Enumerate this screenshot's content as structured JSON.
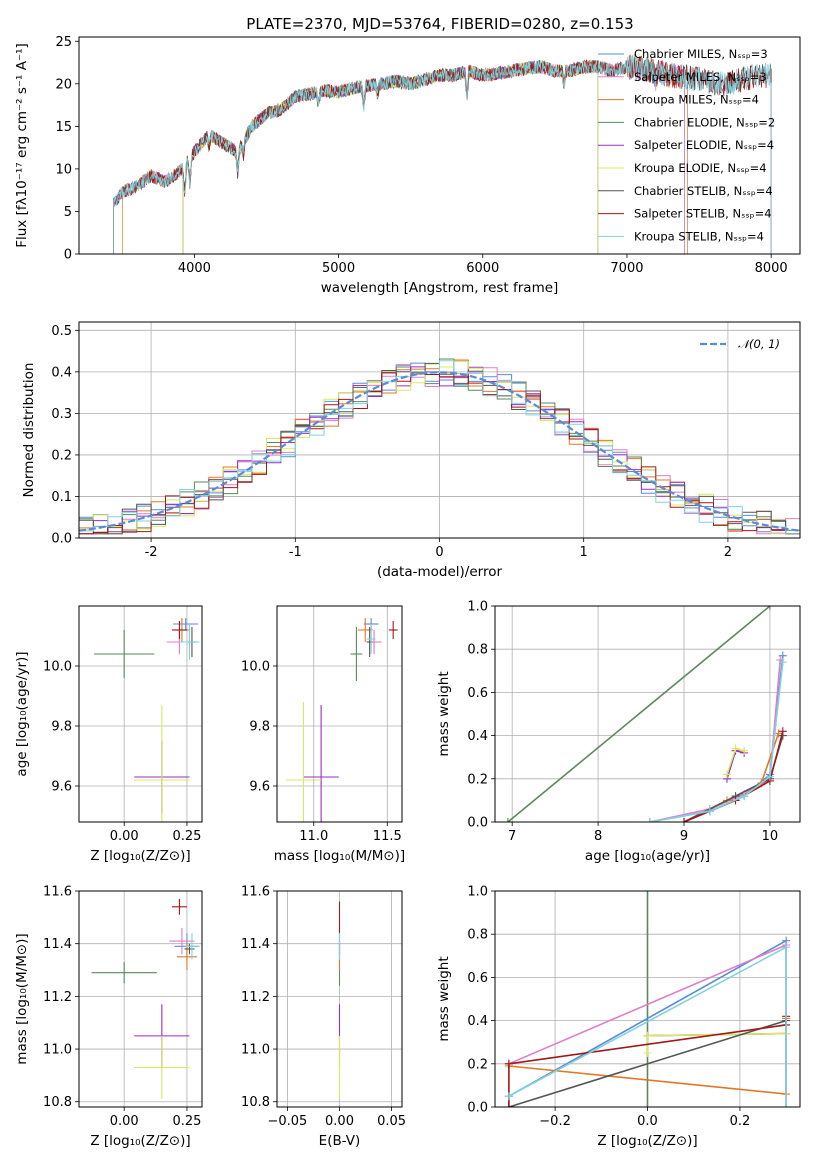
{
  "colors": {
    "chabrier_miles": "#5b8bd6",
    "salpeter_miles": "#e07ec8",
    "kroupa_miles": "#e0782a",
    "chabrier_elodie": "#5a8a5a",
    "salpeter_elodie": "#9a2fc0",
    "kroupa_elodie": "#d8e860",
    "chabrier_stelib": "#555555",
    "salpeter_stelib": "#a01818",
    "kroupa_stelib": "#7fd2de",
    "gaussian": "#5b8bd6"
  },
  "figure_title": "PLATE=2370, MJD=53764, FIBERID=0280, z=0.153",
  "chart_data": [
    {
      "id": "spectrum",
      "type": "line",
      "xlabel": "wavelength [Angstrom, rest frame]",
      "ylabel": "Flux [fλ10⁻¹⁷ erg cm⁻² s⁻¹ A⁻¹]",
      "xlim": [
        3200,
        8200
      ],
      "ylim": [
        0,
        25.5
      ],
      "xticks": [
        4000,
        5000,
        6000,
        7000,
        8000
      ],
      "yticks": [
        0,
        5,
        10,
        15,
        20,
        25
      ],
      "grid": false,
      "legend_location": "upper right",
      "spectrum_x": [
        3440,
        3500,
        3600,
        3700,
        3800,
        3900,
        4000,
        4100,
        4200,
        4300,
        4400,
        4500,
        4600,
        4700,
        4800,
        4900,
        5000,
        5100,
        5200,
        5300,
        5400,
        5500,
        5600,
        5700,
        5800,
        5900,
        6000,
        6100,
        6200,
        6300,
        6400,
        6500,
        6600,
        6700,
        6800,
        6900,
        7000,
        7100,
        7200,
        7300,
        7400,
        7500,
        7600,
        7700,
        7800,
        7900,
        8000
      ],
      "spectrum_y": [
        6.0,
        7.2,
        8.0,
        9.2,
        8.5,
        9.8,
        12.0,
        14.0,
        13.0,
        12.0,
        15.0,
        16.5,
        17.0,
        18.5,
        18.8,
        19.2,
        19.0,
        19.5,
        19.8,
        20.0,
        20.3,
        20.0,
        20.5,
        21.0,
        21.0,
        21.5,
        21.0,
        21.2,
        21.5,
        21.8,
        22.0,
        21.5,
        21.5,
        22.0,
        22.0,
        21.5,
        22.0,
        21.8,
        21.5,
        21.0,
        20.8,
        20.5,
        20.0,
        20.0,
        20.5,
        21.0,
        21.0
      ],
      "series": [
        {
          "name": "Chabrier MILES, Nₛₛₚ=3",
          "color_key": "chabrier_miles",
          "x_range": [
            3440,
            7400
          ]
        },
        {
          "name": "Salpeter MILES, Nₛₛₚ=3",
          "color_key": "salpeter_miles",
          "x_range": [
            3440,
            7400
          ]
        },
        {
          "name": "Kroupa MILES, Nₛₛₚ=4",
          "color_key": "kroupa_miles",
          "x_range": [
            3500,
            7420
          ]
        },
        {
          "name": "Chabrier ELODIE, Nₛₛₚ=2",
          "color_key": "chabrier_elodie",
          "x_range": [
            3920,
            6800
          ]
        },
        {
          "name": "Salpeter ELODIE, Nₛₛₚ=4",
          "color_key": "salpeter_elodie",
          "x_range": [
            3920,
            6800
          ]
        },
        {
          "name": "Kroupa ELODIE, Nₛₛₚ=4",
          "color_key": "kroupa_elodie",
          "x_range": [
            3920,
            6800
          ]
        },
        {
          "name": "Chabrier STELIB, Nₛₛₚ=4",
          "color_key": "chabrier_stelib",
          "x_range": [
            3440,
            8000
          ]
        },
        {
          "name": "Salpeter STELIB, Nₛₛₚ=4",
          "color_key": "salpeter_stelib",
          "x_range": [
            3440,
            8000
          ]
        },
        {
          "name": "Kroupa STELIB, Nₛₛₚ=4",
          "color_key": "kroupa_stelib",
          "x_range": [
            3440,
            8000
          ]
        }
      ]
    },
    {
      "id": "residuals",
      "type": "line",
      "xlabel": "(data-model)/error",
      "ylabel": "Normed distribution",
      "xlim": [
        -2.5,
        2.5
      ],
      "ylim": [
        0,
        0.52
      ],
      "xticks": [
        -2,
        -1,
        0,
        1,
        2
      ],
      "yticks": [
        0.0,
        0.1,
        0.2,
        0.3,
        0.4,
        0.5
      ],
      "ytick_labels": [
        "0.0",
        "0.1",
        "0.2",
        "0.3",
        "0.4",
        "0.5"
      ],
      "grid": true,
      "legend_location": "upper right",
      "gaussian_label": "𝒩(0, 1)"
    },
    {
      "id": "age_vs_Z",
      "type": "scatter",
      "xlabel": "Z [log₁₀(Z/Z⊙)]",
      "ylabel": "age  [log₁₀(age/yr)]",
      "xlim": [
        -0.18,
        0.31
      ],
      "ylim": [
        9.48,
        10.2
      ],
      "xticks": [
        0.0,
        0.25
      ],
      "xtick_labels": [
        "0.00",
        "0.25"
      ],
      "yticks": [
        9.6,
        9.8,
        10.0
      ],
      "ytick_labels": [
        "9.6",
        "9.8",
        "10.0"
      ],
      "grid": true,
      "points": [
        {
          "color_key": "chabrier_elodie",
          "x": 0.0,
          "y": 10.04,
          "xerr": 0.12,
          "yerr": 0.08
        },
        {
          "color_key": "salpeter_elodie",
          "x": 0.15,
          "y": 9.63,
          "xerr": 0.11,
          "yerr": 0.12
        },
        {
          "color_key": "kroupa_elodie",
          "x": 0.15,
          "y": 9.62,
          "xerr": 0.11,
          "yerr": 0.25
        },
        {
          "color_key": "chabrier_miles",
          "x": 0.245,
          "y": 10.14,
          "xerr": 0.05,
          "yerr": 0.02
        },
        {
          "color_key": "salpeter_miles",
          "x": 0.22,
          "y": 10.08,
          "xerr": 0.05,
          "yerr": 0.04
        },
        {
          "color_key": "kroupa_miles",
          "x": 0.23,
          "y": 10.12,
          "xerr": 0.03,
          "yerr": 0.04
        },
        {
          "color_key": "chabrier_stelib",
          "x": 0.27,
          "y": 10.08,
          "xerr": 0.02,
          "yerr": 0.05
        },
        {
          "color_key": "salpeter_stelib",
          "x": 0.22,
          "y": 10.12,
          "xerr": 0.03,
          "yerr": 0.03
        },
        {
          "color_key": "kroupa_stelib",
          "x": 0.26,
          "y": 10.08,
          "xerr": 0.04,
          "yerr": 0.06
        }
      ]
    },
    {
      "id": "age_vs_mass",
      "type": "scatter",
      "xlabel": "mass [log₁₀(M/M⊙)]",
      "ylabel": "",
      "xlim": [
        10.75,
        11.6
      ],
      "ylim": [
        9.48,
        10.2
      ],
      "xticks": [
        11.0,
        11.5
      ],
      "xtick_labels": [
        "11.0",
        "11.5"
      ],
      "yticks": [
        9.6,
        9.8,
        10.0
      ],
      "ytick_labels": [
        "9.6",
        "9.8",
        "10.0"
      ],
      "grid": true,
      "points": [
        {
          "color_key": "chabrier_elodie",
          "x": 11.29,
          "y": 10.04,
          "xerr": 0.04,
          "yerr": 0.09
        },
        {
          "color_key": "salpeter_elodie",
          "x": 11.05,
          "y": 9.63,
          "xerr": 0.12,
          "yerr": 0.24
        },
        {
          "color_key": "kroupa_elodie",
          "x": 10.93,
          "y": 9.62,
          "xerr": 0.12,
          "yerr": 0.26
        },
        {
          "color_key": "chabrier_miles",
          "x": 11.39,
          "y": 10.14,
          "xerr": 0.05,
          "yerr": 0.02
        },
        {
          "color_key": "salpeter_miles",
          "x": 11.41,
          "y": 10.08,
          "xerr": 0.05,
          "yerr": 0.04
        },
        {
          "color_key": "kroupa_miles",
          "x": 11.35,
          "y": 10.12,
          "xerr": 0.05,
          "yerr": 0.04
        },
        {
          "color_key": "chabrier_stelib",
          "x": 11.38,
          "y": 10.08,
          "xerr": 0.02,
          "yerr": 0.05
        },
        {
          "color_key": "salpeter_stelib",
          "x": 11.54,
          "y": 10.12,
          "xerr": 0.03,
          "yerr": 0.03
        },
        {
          "color_key": "kroupa_stelib",
          "x": 11.39,
          "y": 10.09,
          "xerr": 0.03,
          "yerr": 0.05
        }
      ]
    },
    {
      "id": "cumulative_mass_weight_vs_age",
      "type": "line",
      "xlabel": "age  [log₁₀(age/yr)]",
      "ylabel": "mass weight",
      "xlim": [
        6.8,
        10.35
      ],
      "ylim": [
        0,
        1
      ],
      "xticks": [
        7,
        8,
        9,
        10
      ],
      "yticks": [
        0.0,
        0.2,
        0.4,
        0.6,
        0.8,
        1.0
      ],
      "ytick_labels": [
        "0.0",
        "0.2",
        "0.4",
        "0.6",
        "0.8",
        "1.0"
      ],
      "grid": true,
      "series": [
        {
          "color_key": "chabrier_elodie",
          "x": [
            6.95,
            10.0
          ],
          "y": [
            0.0,
            1.0
          ]
        },
        {
          "color_key": "chabrier_miles",
          "x": [
            8.6,
            9.3,
            9.7,
            10.0,
            10.15
          ],
          "y": [
            0.0,
            0.05,
            0.12,
            0.22,
            0.77
          ]
        },
        {
          "color_key": "salpeter_miles",
          "x": [
            8.6,
            9.3,
            9.7,
            10.0,
            10.12
          ],
          "y": [
            0.0,
            0.06,
            0.13,
            0.2,
            0.75
          ]
        },
        {
          "color_key": "kroupa_miles",
          "x": [
            9.0,
            9.5,
            9.9,
            10.1
          ],
          "y": [
            0.0,
            0.1,
            0.18,
            0.41
          ]
        },
        {
          "color_key": "salpeter_elodie",
          "x": [
            9.5,
            9.6,
            9.7
          ],
          "y": [
            0.2,
            0.33,
            0.32
          ]
        },
        {
          "color_key": "kroupa_elodie",
          "x": [
            9.5,
            9.6,
            9.7
          ],
          "y": [
            0.22,
            0.34,
            0.33
          ]
        },
        {
          "color_key": "chabrier_stelib",
          "x": [
            9.0,
            9.6,
            10.0,
            10.15
          ],
          "y": [
            0.0,
            0.12,
            0.2,
            0.4
          ]
        },
        {
          "color_key": "salpeter_stelib",
          "x": [
            9.0,
            9.6,
            10.0,
            10.15
          ],
          "y": [
            0.0,
            0.1,
            0.19,
            0.42
          ]
        },
        {
          "color_key": "kroupa_stelib",
          "x": [
            8.6,
            9.3,
            9.7,
            10.0,
            10.15
          ],
          "y": [
            0.0,
            0.05,
            0.12,
            0.21,
            0.74
          ]
        }
      ]
    },
    {
      "id": "mass_vs_Z",
      "type": "scatter",
      "xlabel": "Z [log₁₀(Z/Z⊙)]",
      "ylabel": "mass [log₁₀(M/M⊙)]",
      "xlim": [
        -0.18,
        0.31
      ],
      "ylim": [
        10.78,
        11.6
      ],
      "xticks": [
        0.0,
        0.25
      ],
      "xtick_labels": [
        "0.00",
        "0.25"
      ],
      "yticks": [
        10.8,
        11.0,
        11.2,
        11.4,
        11.6
      ],
      "ytick_labels": [
        "10.8",
        "11.0",
        "11.2",
        "11.4",
        "11.6"
      ],
      "grid": true,
      "points": [
        {
          "color_key": "chabrier_elodie",
          "x": 0.0,
          "y": 11.29,
          "xerr": 0.13,
          "yerr": 0.04
        },
        {
          "color_key": "salpeter_elodie",
          "x": 0.15,
          "y": 11.05,
          "xerr": 0.11,
          "yerr": 0.12
        },
        {
          "color_key": "kroupa_elodie",
          "x": 0.15,
          "y": 10.93,
          "xerr": 0.11,
          "yerr": 0.12
        },
        {
          "color_key": "chabrier_miles",
          "x": 0.25,
          "y": 11.39,
          "xerr": 0.05,
          "yerr": 0.05
        },
        {
          "color_key": "salpeter_miles",
          "x": 0.23,
          "y": 11.41,
          "xerr": 0.05,
          "yerr": 0.05
        },
        {
          "color_key": "kroupa_miles",
          "x": 0.25,
          "y": 11.35,
          "xerr": 0.04,
          "yerr": 0.05
        },
        {
          "color_key": "chabrier_stelib",
          "x": 0.26,
          "y": 11.38,
          "xerr": 0.02,
          "yerr": 0.02
        },
        {
          "color_key": "salpeter_stelib",
          "x": 0.22,
          "y": 11.54,
          "xerr": 0.03,
          "yerr": 0.03
        },
        {
          "color_key": "kroupa_stelib",
          "x": 0.27,
          "y": 11.39,
          "xerr": 0.03,
          "yerr": 0.05
        }
      ]
    },
    {
      "id": "mass_vs_ebv",
      "type": "scatter",
      "xlabel": "E(B-V)",
      "ylabel": "",
      "xlim": [
        -0.06,
        0.06
      ],
      "ylim": [
        10.78,
        11.6
      ],
      "xticks": [
        -0.05,
        0.0,
        0.05
      ],
      "xtick_labels": [
        "−0.05",
        "0.00",
        "0.05"
      ],
      "yticks": [
        10.8,
        11.0,
        11.2,
        11.4,
        11.6
      ],
      "ytick_labels": [
        "10.8",
        "11.0",
        "11.2",
        "11.4",
        "11.6"
      ],
      "grid": true,
      "points": [
        {
          "color_key": "chabrier_elodie",
          "x": 0.0,
          "y": 11.29,
          "xerr": 0.0,
          "yerr": 0.05
        },
        {
          "color_key": "salpeter_elodie",
          "x": 0.0,
          "y": 11.05,
          "xerr": 0.0,
          "yerr": 0.12
        },
        {
          "color_key": "kroupa_elodie",
          "x": 0.0,
          "y": 10.93,
          "xerr": 0.0,
          "yerr": 0.12
        },
        {
          "color_key": "chabrier_miles",
          "x": 0.0,
          "y": 11.39,
          "xerr": 0.0,
          "yerr": 0.05
        },
        {
          "color_key": "salpeter_miles",
          "x": 0.0,
          "y": 11.41,
          "xerr": 0.0,
          "yerr": 0.05
        },
        {
          "color_key": "kroupa_miles",
          "x": 0.0,
          "y": 11.35,
          "xerr": 0.0,
          "yerr": 0.05
        },
        {
          "color_key": "chabrier_stelib",
          "x": 0.0,
          "y": 11.38,
          "xerr": 0.0,
          "yerr": 0.02
        },
        {
          "color_key": "salpeter_stelib",
          "x": 0.0,
          "y": 11.5,
          "xerr": 0.0,
          "yerr": 0.06
        },
        {
          "color_key": "kroupa_stelib",
          "x": 0.0,
          "y": 11.39,
          "xerr": 0.0,
          "yerr": 0.05
        }
      ]
    },
    {
      "id": "cumulative_mass_weight_vs_Z",
      "type": "line",
      "xlabel": "Z [log₁₀(Z/Z⊙)]",
      "ylabel": "mass weight",
      "xlim": [
        -0.33,
        0.33
      ],
      "ylim": [
        0,
        1
      ],
      "xticks": [
        -0.2,
        0.0,
        0.2
      ],
      "xtick_labels": [
        "−0.2",
        "0.0",
        "0.2"
      ],
      "yticks": [
        0.0,
        0.2,
        0.4,
        0.6,
        0.8,
        1.0
      ],
      "ytick_labels": [
        "0.0",
        "0.2",
        "0.4",
        "0.6",
        "0.8",
        "1.0"
      ],
      "grid": true,
      "series": [
        {
          "color_key": "chabrier_elodie",
          "x": [
            0.0,
            0.0
          ],
          "y": [
            0.0,
            1.0
          ]
        },
        {
          "color_key": "chabrier_miles",
          "x": [
            -0.3,
            0.3,
            0.3
          ],
          "y": [
            0.05,
            0.77,
            0.0
          ]
        },
        {
          "color_key": "salpeter_miles",
          "x": [
            -0.3,
            0.3,
            0.3
          ],
          "y": [
            0.2,
            0.75,
            0.0
          ]
        },
        {
          "color_key": "kroupa_miles",
          "x": [
            -0.3,
            0.3,
            0.3
          ],
          "y": [
            0.19,
            0.06,
            0.41
          ]
        },
        {
          "color_key": "salpeter_elodie",
          "x": [
            0.0,
            0.3
          ],
          "y": [
            0.33,
            0.34
          ]
        },
        {
          "color_key": "kroupa_elodie",
          "x": [
            0.0,
            0.0,
            0.3
          ],
          "y": [
            0.25,
            0.33,
            0.34
          ]
        },
        {
          "color_key": "chabrier_stelib",
          "x": [
            -0.3,
            0.3
          ],
          "y": [
            0.0,
            0.4
          ]
        },
        {
          "color_key": "salpeter_stelib",
          "x": [
            -0.3,
            -0.3,
            0.3,
            0.3
          ],
          "y": [
            0.0,
            0.2,
            0.38,
            0.42
          ]
        },
        {
          "color_key": "kroupa_stelib",
          "x": [
            -0.3,
            0.3,
            0.3
          ],
          "y": [
            0.05,
            0.74,
            0.0
          ]
        }
      ]
    }
  ]
}
